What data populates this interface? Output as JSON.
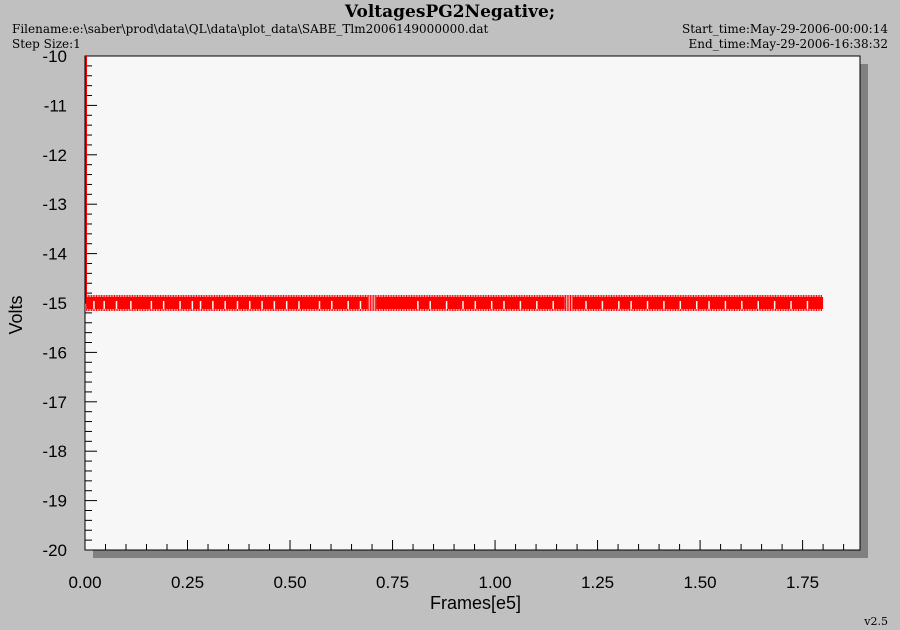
{
  "window": {
    "title": "VoltagesPG2Negative;",
    "filename": "Filename:e:\\saber\\prod\\data\\QL\\data\\plot_data\\SABE_Tlm2006149000000.dat",
    "step_size": "Step Size:1",
    "start_time": "Start_time:May-29-2006-00:00:14",
    "end_time": "End_time:May-29-2006-16:38:32",
    "version": "v2.5"
  },
  "colors": {
    "background": "#c0c0c0",
    "plot_area": "#f7f7f7",
    "shadow": "#808080",
    "data": "#ff0000"
  },
  "chart_data": {
    "type": "scatter",
    "xlabel": "Frames[e5]",
    "ylabel": "Volts",
    "xlim": [
      0,
      1.89
    ],
    "ylim": [
      -20,
      -10
    ],
    "x_ticks": [
      0.0,
      0.25,
      0.5,
      0.75,
      1.0,
      1.25,
      1.5,
      1.75
    ],
    "x_tick_labels": [
      "0.00",
      "0.25",
      "0.50",
      "0.75",
      "1.00",
      "1.25",
      "1.50",
      "1.75"
    ],
    "y_ticks": [
      -20,
      -19,
      -18,
      -17,
      -16,
      -15,
      -14,
      -13,
      -12,
      -11,
      -10
    ],
    "y_tick_labels": [
      "-20",
      "-19",
      "-18",
      "-17",
      "-16",
      "-15",
      "-14",
      "-13",
      "-12",
      "-11",
      "-10"
    ],
    "series": [
      {
        "color": "#ff0000",
        "x_range": [
          0.0,
          1.8
        ],
        "y_value": -15,
        "gaps": [
          [
            0.69,
            0.705
          ],
          [
            1.17,
            1.185
          ]
        ],
        "initial_spike": {
          "x": 0.0,
          "y_range": [
            -15,
            -10
          ]
        }
      }
    ],
    "grid": false
  }
}
